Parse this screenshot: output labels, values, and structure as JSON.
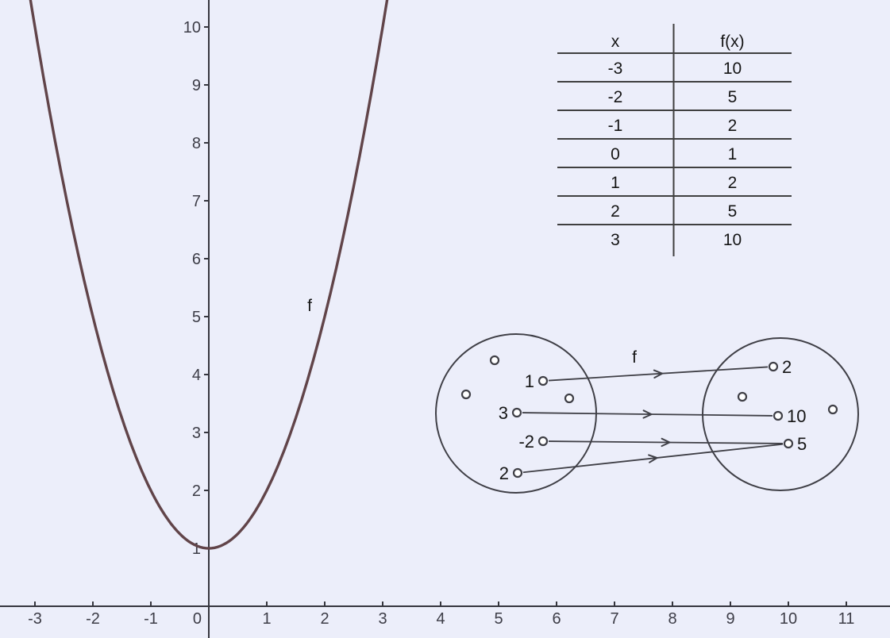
{
  "view": {
    "title": "graphing-view"
  },
  "colors": {
    "background": "#eceefa",
    "axis": "#36363e",
    "tick_label": "#3d3d47",
    "curve": "#614449",
    "table_line": "#3f3f3f",
    "text": "#151515",
    "diagram": "#3f3f46",
    "point_fill": "#ffffff"
  },
  "chart_data": {
    "type": "line",
    "title": "",
    "xlabel": "",
    "ylabel": "",
    "grid": false,
    "curve_label": "f",
    "function": "f(x) = x^2 + 1",
    "coefficients": {
      "a": 1,
      "b": 0,
      "c": 1
    },
    "points": [
      [
        -3,
        10
      ],
      [
        -2,
        5
      ],
      [
        -1,
        2
      ],
      [
        0,
        1
      ],
      [
        1,
        2
      ],
      [
        2,
        5
      ],
      [
        3,
        10
      ]
    ],
    "x_ticks": [
      -3,
      -2,
      -1,
      0,
      1,
      2,
      3,
      4,
      5,
      6,
      7,
      8,
      9,
      10,
      11
    ],
    "y_ticks": [
      1,
      2,
      3,
      4,
      5,
      6,
      7,
      8,
      9,
      10
    ],
    "xlim": [
      -3.6,
      11.75
    ],
    "ylim": [
      -0.55,
      10.47
    ],
    "legend_position": "none"
  },
  "table": {
    "headers": [
      "x",
      "f(x)"
    ],
    "rows": [
      [
        "-3",
        "10"
      ],
      [
        "-2",
        "5"
      ],
      [
        "-1",
        "2"
      ],
      [
        "0",
        "1"
      ],
      [
        "1",
        "2"
      ],
      [
        "2",
        "5"
      ],
      [
        "3",
        "10"
      ]
    ]
  },
  "mapping": {
    "label": "f",
    "domain": {
      "labeled": [
        "1",
        "3",
        "-2",
        "2"
      ],
      "unlabeled_count": 3
    },
    "codomain": {
      "labeled": [
        "2",
        "10",
        "5"
      ],
      "unlabeled_count": 2
    },
    "arrows": [
      {
        "from": "1",
        "to": "2"
      },
      {
        "from": "3",
        "to": "10"
      },
      {
        "from": "-2",
        "to": "5"
      },
      {
        "from": "2",
        "to": "5"
      }
    ]
  }
}
